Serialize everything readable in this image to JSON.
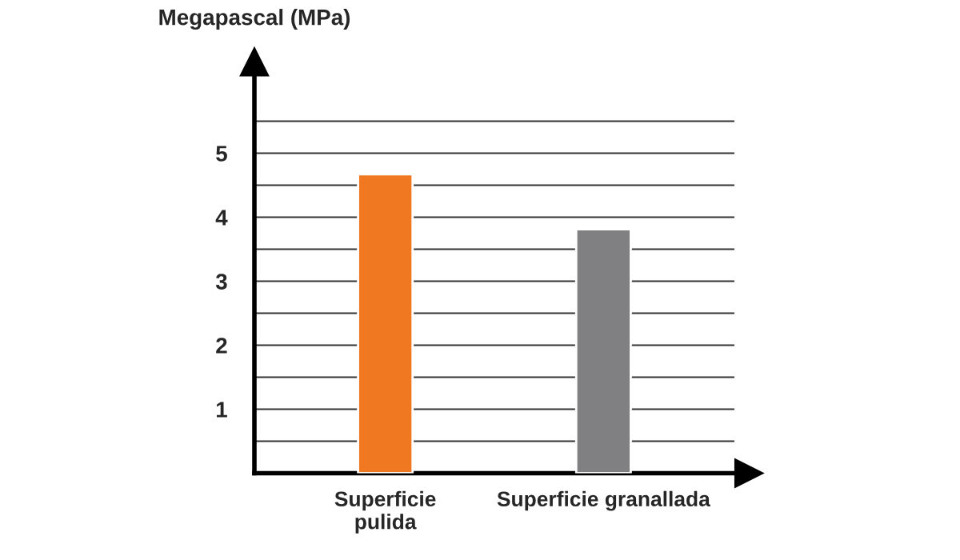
{
  "chart_data": {
    "type": "bar",
    "ylabel": "Megapascal (MPa)",
    "categories": [
      "Superficie\npulida",
      "Superficie granallada"
    ],
    "values": [
      4.67,
      3.81
    ],
    "colors": [
      "#f07820",
      "#808083"
    ],
    "ylim": [
      0,
      6.3
    ],
    "yticks": [
      {
        "value": 0.5,
        "label": null
      },
      1,
      {
        "value": 1.5,
        "label": null
      },
      2,
      {
        "value": 2.5,
        "label": null
      },
      3,
      {
        "value": 3.5,
        "label": null
      },
      4,
      {
        "value": 4.5,
        "label": null
      },
      5,
      {
        "value": 5.5,
        "label": null
      }
    ],
    "grid": "y"
  }
}
